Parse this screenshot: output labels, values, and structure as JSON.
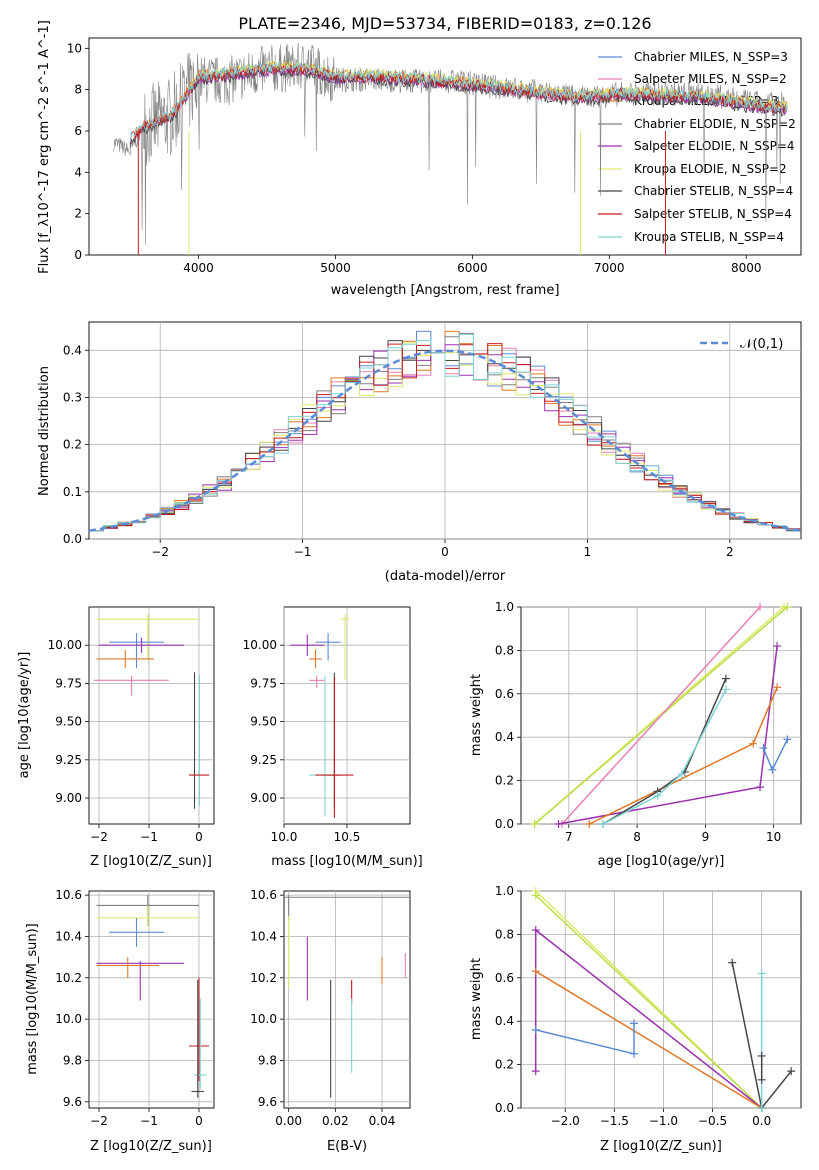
{
  "figure": {
    "title": "PLATE=2346, MJD=53734, FIBERID=0183, z=0.126"
  },
  "colors": {
    "chabrier_miles": "#5b8bd6",
    "salpeter_miles": "#e87fb5",
    "kroupa_miles": "#e07828",
    "chabrier_elodie": "#808080",
    "salpeter_elodie": "#9b30b0",
    "kroupa_elodie": "#dfe86a",
    "chabrier_stelib": "#474747",
    "salpeter_stelib": "#c41c1c",
    "kroupa_stelib": "#7fd3d6",
    "normal": "#5b8bd6",
    "grid": "#b0b0b0",
    "kroupa_stelib_alt": "#b8e04a"
  },
  "chart_data": [
    {
      "id": "spectrum",
      "type": "line",
      "xlabel": "wavelength [Angstrom, rest frame]",
      "ylabel": "Flux [f_λ10^-17 erg cm^-2 s^-1 A^-1]",
      "xlim": [
        3200,
        8400
      ],
      "ylim": [
        0,
        10.5
      ],
      "xticks": [
        "4000",
        "5000",
        "6000",
        "7000",
        "8000"
      ],
      "yticks": [
        "0",
        "2",
        "4",
        "6",
        "8",
        "10"
      ],
      "grid": false,
      "legend": "top-right",
      "legend_entries": [
        "Chabrier MILES, N_SSP=3",
        "Salpeter MILES, N_SSP=2",
        "Kroupa MILES, N_SSP=3",
        "Chabrier ELODIE, N_SSP=2",
        "Salpeter ELODIE, N_SSP=4",
        "Kroupa ELODIE, N_SSP=2",
        "Chabrier STELIB, N_SSP=4",
        "Salpeter STELIB, N_SSP=4",
        "Kroupa STELIB, N_SSP=4"
      ],
      "data_x": [
        3400,
        3500,
        3600,
        3800,
        4000,
        4200,
        4500,
        4800,
        5000,
        5300,
        5600,
        5900,
        6200,
        6500,
        6800,
        7100,
        7400,
        7700,
        8000,
        8200
      ],
      "data_y": [
        5.4,
        5.0,
        6.2,
        6.7,
        8.5,
        8.4,
        9.0,
        9.1,
        8.5,
        8.5,
        8.4,
        8.4,
        8.1,
        7.9,
        7.6,
        7.8,
        7.8,
        7.8,
        7.4,
        7.3
      ],
      "model_y": [
        5.4,
        5.6,
        6.2,
        6.7,
        8.6,
        8.7,
        9.0,
        9.0,
        8.6,
        8.6,
        8.5,
        8.3,
        8.1,
        7.8,
        7.6,
        7.8,
        7.7,
        7.6,
        7.3,
        7.1
      ]
    },
    {
      "id": "residuals",
      "type": "line",
      "xlabel": "(data-model)/error",
      "ylabel": "Normed distribution",
      "xlim": [
        -2.5,
        2.5
      ],
      "ylim": [
        0,
        0.46
      ],
      "xticks": [
        "−2",
        "−1",
        "0",
        "1",
        "2"
      ],
      "yticks": [
        "0.0",
        "0.1",
        "0.2",
        "0.3",
        "0.4"
      ],
      "grid": true,
      "legend": "top-right",
      "legend_entries": [
        "𝒩(0,1)"
      ],
      "bin_width": 0.1
    },
    {
      "id": "age_vs_Z",
      "type": "scatter",
      "xlabel": "Z [log10(Z/Z_sun)]",
      "ylabel": "age [log10(age/yr)]",
      "xlim": [
        -2.2,
        0.3
      ],
      "ylim": [
        8.83,
        10.25
      ],
      "xticks": [
        "−2",
        "−1",
        "0"
      ],
      "yticks": [
        "9.00",
        "9.25",
        "9.50",
        "9.75",
        "10.00"
      ],
      "grid": true
    },
    {
      "id": "age_vs_mass",
      "type": "scatter",
      "xlabel": "mass [log10(M/M_sun)]",
      "ylabel": "",
      "xlim": [
        10.0,
        11.0
      ],
      "ylim": [
        8.83,
        10.25
      ],
      "xticks": [
        "10.0",
        "10.5"
      ],
      "yticks": [
        "9.00",
        "9.25",
        "9.50",
        "9.75",
        "10.00"
      ],
      "grid": true
    },
    {
      "id": "mass_weight_vs_age",
      "type": "line",
      "xlabel": "age [log10(age/yr)]",
      "ylabel": "mass weight",
      "xlim": [
        6.3,
        10.4
      ],
      "ylim": [
        0,
        1.0
      ],
      "xticks": [
        "7",
        "8",
        "9",
        "10"
      ],
      "yticks": [
        "0.0",
        "0.2",
        "0.4",
        "0.6",
        "0.8",
        "1.0"
      ],
      "grid": true
    },
    {
      "id": "mass_vs_Z",
      "type": "scatter",
      "xlabel": "Z [log10(Z/Z_sun)]",
      "ylabel": "mass [log10(M/M_sun)]",
      "xlim": [
        -2.2,
        0.3
      ],
      "ylim": [
        9.57,
        10.62
      ],
      "xticks": [
        "−2",
        "−1",
        "0"
      ],
      "yticks": [
        "9.6",
        "9.8",
        "10.0",
        "10.2",
        "10.4",
        "10.6"
      ],
      "grid": true
    },
    {
      "id": "mass_vs_ebv",
      "type": "scatter",
      "xlabel": "E(B-V)",
      "ylabel": "",
      "xlim": [
        -0.002,
        0.052
      ],
      "ylim": [
        9.57,
        10.62
      ],
      "xticks": [
        "0.00",
        "0.02",
        "0.04"
      ],
      "yticks": [
        "9.6",
        "9.8",
        "10.0",
        "10.2",
        "10.4",
        "10.6"
      ],
      "grid": true
    },
    {
      "id": "mass_weight_vs_Z",
      "type": "line",
      "xlabel": "Z [log10(Z/Z_sun)]",
      "ylabel": "mass weight",
      "xlim": [
        -2.45,
        0.4
      ],
      "ylim": [
        0,
        1.0
      ],
      "xticks": [
        "−2.0",
        "−1.5",
        "−1.0",
        "−0.5",
        "0.0"
      ],
      "yticks": [
        "0.0",
        "0.2",
        "0.4",
        "0.6",
        "0.8",
        "1.0"
      ],
      "grid": true
    }
  ]
}
